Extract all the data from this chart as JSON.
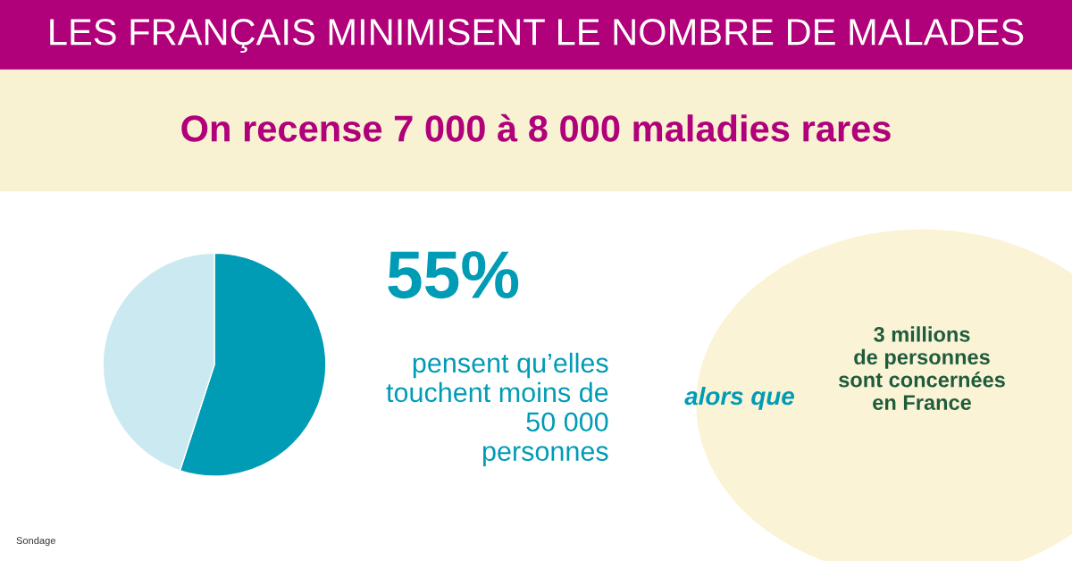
{
  "chart_data": {
    "type": "pie",
    "title": "LES FRANÇAIS MINIMISENT LE NOMBRE DE MALADES",
    "subtitle": "On recense 7 000 à 8 000 maladies rares",
    "categories": [
      null,
      null
    ],
    "values": [
      55,
      45
    ],
    "colors": [
      "#009bb5",
      "#cbe9f0"
    ],
    "value_labels": [
      "55%",
      null
    ],
    "annotations": [
      "pensent qu’elles touchent moins de 50 000 personnes",
      "alors que",
      "3 millions de personnes sont concernées en France",
      "Sondage"
    ]
  }
}
